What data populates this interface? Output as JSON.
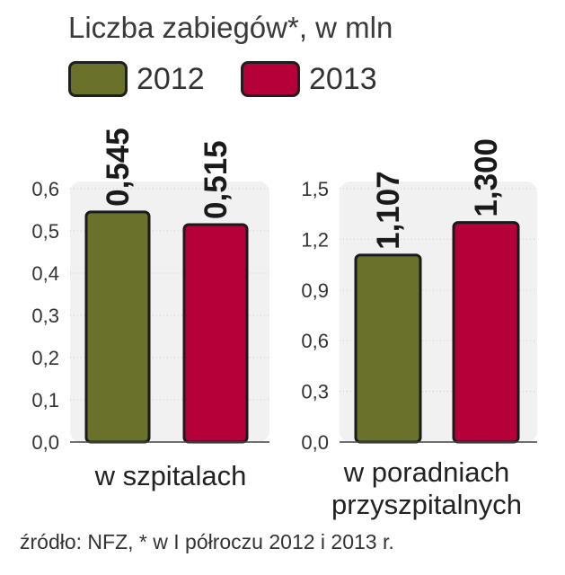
{
  "title": "Liczba zabiegów*, w mln",
  "legend": [
    {
      "label": "2012",
      "color": "#69712a"
    },
    {
      "label": "2013",
      "color": "#b5003a"
    }
  ],
  "source": "źródło: NFZ, * w I półroczu 2012 i 2013 r.",
  "chart_data": [
    {
      "type": "bar",
      "categories": [
        "w szpitalach"
      ],
      "category_label": "w szpitalach",
      "series": [
        {
          "name": "2012",
          "values": [
            0.545
          ],
          "label": "0,545"
        },
        {
          "name": "2013",
          "values": [
            0.515
          ],
          "label": "0,515"
        }
      ],
      "ylim": [
        0,
        0.6
      ],
      "yticks": [
        "0,0",
        "0,1",
        "0,2",
        "0,3",
        "0,4",
        "0,5",
        "0,6"
      ],
      "grid": true
    },
    {
      "type": "bar",
      "categories": [
        "w poradniach przyszpitalnych"
      ],
      "category_label": "w poradniach przyszpitalnych",
      "series": [
        {
          "name": "2012",
          "values": [
            1.107
          ],
          "label": "1,107"
        },
        {
          "name": "2013",
          "values": [
            1.3
          ],
          "label": "1,300"
        }
      ],
      "ylim": [
        0,
        1.5
      ],
      "yticks": [
        "0,0",
        "0,3",
        "0,6",
        "0,9",
        "1,2",
        "1,5"
      ],
      "grid": true
    }
  ]
}
